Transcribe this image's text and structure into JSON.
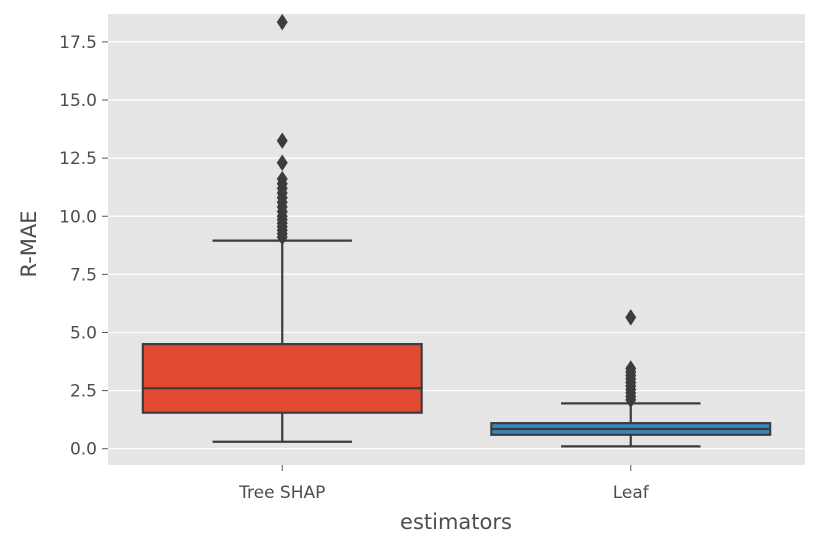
{
  "chart_data": {
    "type": "box",
    "xlabel": "estimators",
    "ylabel": "R-MAE",
    "ylim": [
      -0.7,
      18.7
    ],
    "yticks": [
      "0.0",
      "2.5",
      "5.0",
      "7.5",
      "10.0",
      "12.5",
      "15.0",
      "17.5"
    ],
    "ytick_values": [
      0.0,
      2.5,
      5.0,
      7.5,
      10.0,
      12.5,
      15.0,
      17.5
    ],
    "grid": true,
    "categories": [
      "Tree SHAP",
      "Leaf"
    ],
    "boxes": [
      {
        "name": "Tree SHAP",
        "color": "#E24A33",
        "whisker_low": 0.3,
        "q1": 1.55,
        "median": 2.6,
        "q3": 4.5,
        "whisker_high": 8.95,
        "outliers": [
          18.35,
          13.25,
          12.3,
          11.6,
          11.4,
          11.2,
          11.0,
          10.8,
          10.6,
          10.4,
          10.2,
          10.0,
          9.85,
          9.7,
          9.55,
          9.4,
          9.25,
          9.1
        ]
      },
      {
        "name": "Leaf",
        "color": "#348ABD",
        "whisker_low": 0.1,
        "q1": 0.6,
        "median": 0.85,
        "q3": 1.1,
        "whisker_high": 1.95,
        "outliers": [
          5.65,
          3.45,
          3.3,
          3.15,
          3.0,
          2.85,
          2.7,
          2.55,
          2.4,
          2.25,
          2.1
        ]
      }
    ]
  }
}
